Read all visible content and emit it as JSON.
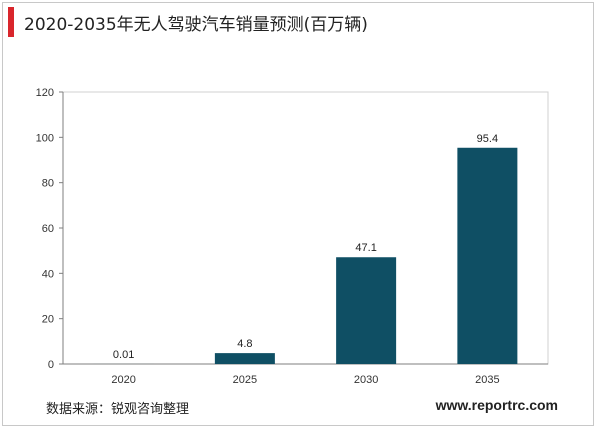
{
  "title": "2020-2035年无人驾驶汽车销量预测(百万辆)",
  "source": "数据来源：锐观咨询整理",
  "website": "www.reportrc.com",
  "colors": {
    "bar": "#0f4f64",
    "accent": "#d9262c",
    "axis": "#7f7f7f"
  },
  "chart_data": {
    "type": "bar",
    "title": "2020-2035年无人驾驶汽车销量预测(百万辆)",
    "categories": [
      "2020",
      "2025",
      "2030",
      "2035"
    ],
    "values": [
      0.01,
      4.8,
      47.1,
      95.4
    ],
    "data_labels": [
      "0.01",
      "4.8",
      "47.1",
      "95.4"
    ],
    "ylim": [
      0,
      120
    ],
    "yticks": [
      0,
      20,
      40,
      60,
      80,
      100,
      120
    ],
    "xlabel": "",
    "ylabel": "",
    "grid": false,
    "legend": "none"
  }
}
